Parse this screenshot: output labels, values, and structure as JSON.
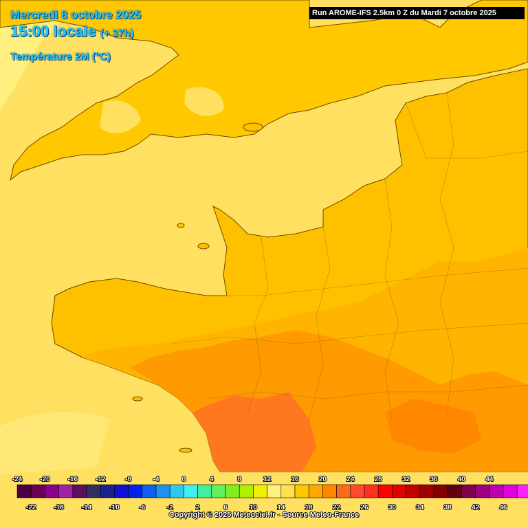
{
  "header": {
    "date": "Mercredi 8 octobre 2025",
    "time": "15:00 locale",
    "offset": "(+ 37h)",
    "parameter": "Température 2M (°C)",
    "run": "Run AROME-IFS 2.5km 0 Z du Mardi 7 octobre 2025"
  },
  "footer": {
    "copyright": "Copyright © 2025 Meteociel.fr - Source Meteo-France"
  },
  "legend": {
    "top_labels": [
      "-24",
      "-20",
      "-16",
      "-12",
      "-8",
      "-4",
      "0",
      "4",
      "8",
      "12",
      "16",
      "20",
      "24",
      "28",
      "32",
      "36",
      "40",
      "44"
    ],
    "bottom_labels": [
      "-22",
      "-18",
      "-14",
      "-10",
      "-6",
      "-2",
      "2",
      "6",
      "10",
      "14",
      "18",
      "22",
      "26",
      "30",
      "34",
      "38",
      "42",
      "46"
    ],
    "colors": [
      "#4a0040",
      "#6a0058",
      "#8c0090",
      "#a020a8",
      "#5a1060",
      "#303060",
      "#1a2090",
      "#1010d0",
      "#0020f0",
      "#1060f0",
      "#2090f0",
      "#30c8f0",
      "#40f0f0",
      "#40f0a0",
      "#60f060",
      "#80f020",
      "#b0f000",
      "#f0f000",
      "#fff080",
      "#ffe050",
      "#ffc800",
      "#ffa800",
      "#ff8800",
      "#ff6820",
      "#ff4a30",
      "#ff3020",
      "#ff0000",
      "#e00000",
      "#c00000",
      "#a00000",
      "#800000",
      "#600010",
      "#800050",
      "#a00080",
      "#c000b0",
      "#e000e0",
      "#ff20ff",
      "#ff60ff",
      "#ff90ff"
    ]
  },
  "map": {
    "colors": {
      "sea": "#ffe060",
      "sea_light": "#fff080",
      "land_14": "#ffd040",
      "land_16": "#ffc800",
      "land_18": "#ffb400",
      "land_20": "#ffa000",
      "land_22": "#ff8a00",
      "land_24": "#ff7020",
      "border": "#6a4a00"
    }
  }
}
